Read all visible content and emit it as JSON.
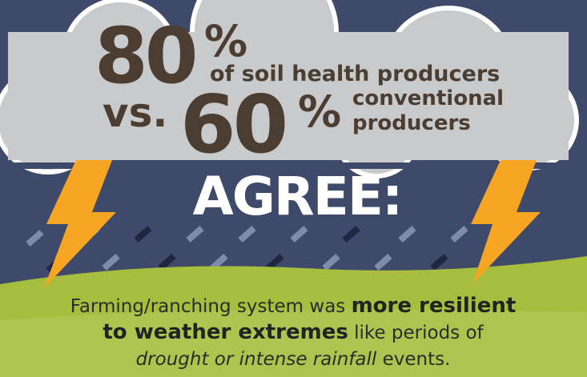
{
  "stat_primary": {
    "number": "80",
    "unit": "%",
    "label": "of soil health producers"
  },
  "comparison": {
    "prefix": "vs.",
    "number": "60",
    "unit": "%",
    "label_line1": "conventional",
    "label_line2": "producers"
  },
  "headline": "AGREE:",
  "statement": {
    "lines": [
      [
        {
          "text": "Farming/ranching system was ",
          "style": "normal"
        },
        {
          "text": "more resilient",
          "style": "bold"
        }
      ],
      [
        {
          "text": "to weather extremes",
          "style": "bold"
        },
        {
          "text": " like periods of",
          "style": "normal"
        }
      ],
      [
        {
          "text": "drought or intense rainfall",
          "style": "italic"
        },
        {
          "text": " events.",
          "style": "normal"
        }
      ]
    ]
  }
}
